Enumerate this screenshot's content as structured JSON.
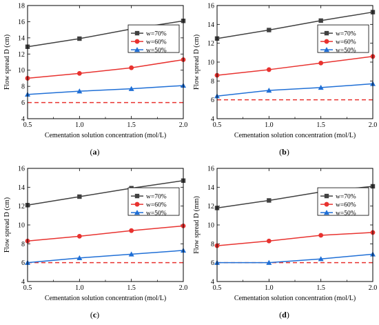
{
  "charts": [
    {
      "panel_label": "a",
      "chart_data": {
        "type": "line",
        "x": [
          0.5,
          1.0,
          1.5,
          2.0
        ],
        "xlabel": "Cementation solution concentration (mol/L)",
        "ylabel": "Flow spread D (cm)",
        "xlim": [
          0.5,
          2.0
        ],
        "ylim": [
          4,
          18
        ],
        "xticks": [
          "0.5",
          "1.0",
          "1.5",
          "2.0"
        ],
        "yticks": [
          "4",
          "6",
          "8",
          "10",
          "12",
          "14",
          "16",
          "18"
        ],
        "series": [
          {
            "name": "w=70%",
            "values": [
              12.9,
              13.9,
              15.1,
              16.1
            ],
            "color": "#404040",
            "marker": "square"
          },
          {
            "name": "w=60%",
            "values": [
              9.0,
              9.6,
              10.3,
              11.3
            ],
            "color": "#e8322f",
            "marker": "circle"
          },
          {
            "name": "w=50%",
            "values": [
              7.0,
              7.4,
              7.7,
              8.1
            ],
            "color": "#1f6fd6",
            "marker": "triangle"
          }
        ],
        "reference_line": {
          "y": 6.0,
          "color": "#e8322f",
          "style": "dashed"
        },
        "legend": "right"
      }
    },
    {
      "panel_label": "b",
      "chart_data": {
        "type": "line",
        "x": [
          0.5,
          1.0,
          1.5,
          2.0
        ],
        "xlabel": "Cementation solution concentration (mol/L)",
        "ylabel": "Flow spread D (cm)",
        "xlim": [
          0.5,
          2.0
        ],
        "ylim": [
          4,
          16
        ],
        "xticks": [
          "0.5",
          "1.0",
          "1.5",
          "2.0"
        ],
        "yticks": [
          "4",
          "6",
          "8",
          "10",
          "12",
          "14",
          "16"
        ],
        "series": [
          {
            "name": "w=70%",
            "values": [
              12.5,
              13.4,
              14.4,
              15.3
            ],
            "color": "#404040",
            "marker": "square"
          },
          {
            "name": "w=60%",
            "values": [
              8.6,
              9.2,
              9.9,
              10.6
            ],
            "color": "#e8322f",
            "marker": "circle"
          },
          {
            "name": "w=50%",
            "values": [
              6.4,
              7.0,
              7.3,
              7.7
            ],
            "color": "#1f6fd6",
            "marker": "triangle"
          }
        ],
        "reference_line": {
          "y": 6.0,
          "color": "#e8322f",
          "style": "dashed"
        },
        "legend": "right"
      }
    },
    {
      "panel_label": "c",
      "chart_data": {
        "type": "line",
        "x": [
          0.5,
          1.0,
          1.5,
          2.0
        ],
        "xlabel": "Cementation solution concentration (mol/L)",
        "ylabel": "Flow spread D (cm)",
        "xlim": [
          0.5,
          2.0
        ],
        "ylim": [
          4,
          16
        ],
        "xticks": [
          "0.5",
          "1.0",
          "1.5",
          "2.0"
        ],
        "yticks": [
          "4",
          "6",
          "8",
          "10",
          "12",
          "14",
          "16"
        ],
        "series": [
          {
            "name": "w=70%",
            "values": [
              12.1,
              13.0,
              13.9,
              14.7
            ],
            "color": "#404040",
            "marker": "square"
          },
          {
            "name": "w=60%",
            "values": [
              8.3,
              8.8,
              9.4,
              9.9
            ],
            "color": "#e8322f",
            "marker": "circle"
          },
          {
            "name": "w=50%",
            "values": [
              6.0,
              6.5,
              6.9,
              7.3
            ],
            "color": "#1f6fd6",
            "marker": "triangle"
          }
        ],
        "reference_line": {
          "y": 6.0,
          "color": "#e8322f",
          "style": "dashed"
        },
        "legend": "right"
      }
    },
    {
      "panel_label": "d",
      "chart_data": {
        "type": "line",
        "x": [
          0.5,
          1.0,
          1.5,
          2.0
        ],
        "xlabel": "Cementation solution concentration (mol/L)",
        "ylabel": "Flow spread D (mm)",
        "xlim": [
          0.5,
          2.0
        ],
        "ylim": [
          4,
          16
        ],
        "xticks": [
          "0.5",
          "1.0",
          "1.5",
          "2.0"
        ],
        "yticks": [
          "4",
          "6",
          "8",
          "10",
          "12",
          "14",
          "16"
        ],
        "series": [
          {
            "name": "w=70%",
            "values": [
              11.8,
              12.6,
              13.5,
              14.1
            ],
            "color": "#404040",
            "marker": "square"
          },
          {
            "name": "w=60%",
            "values": [
              7.8,
              8.3,
              8.9,
              9.2
            ],
            "color": "#e8322f",
            "marker": "circle"
          },
          {
            "name": "w=50%",
            "values": [
              6.0,
              6.0,
              6.4,
              6.9
            ],
            "color": "#1f6fd6",
            "marker": "triangle"
          }
        ],
        "reference_line": {
          "y": 6.0,
          "color": "#e8322f",
          "style": "dashed"
        },
        "legend": "right"
      }
    }
  ]
}
